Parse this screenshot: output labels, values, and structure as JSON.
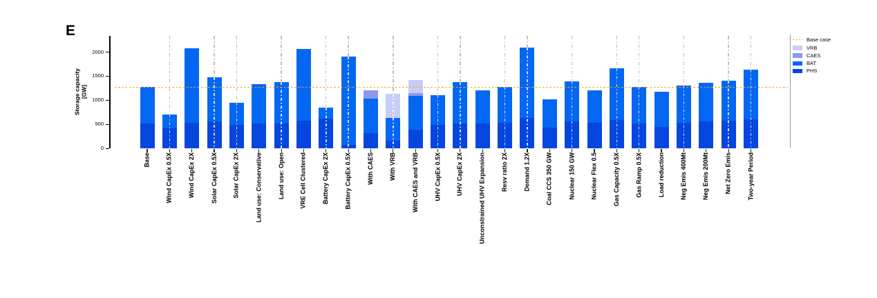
{
  "panel_label": "E",
  "chart_data": {
    "type": "bar",
    "stacked": true,
    "title": "",
    "ylabel_lines": [
      "Storage capacity",
      "[GW]"
    ],
    "ylabel": "Storage capacity [GW]",
    "xlabel": "",
    "yticks": [
      0,
      500,
      1000,
      1500,
      2000
    ],
    "ylim": [
      0,
      2320
    ],
    "grid": "vertical-dashed-on-selected-categories",
    "legend_position": "right",
    "base_case": {
      "label": "Base case",
      "value": 1270,
      "color": "#F5A300",
      "style": "dotted"
    },
    "colors": {
      "PHS": "#0546DE",
      "BAT": "#0467F2",
      "CAES": "#8C97EE",
      "VRB": "#C7CDF5"
    },
    "segment_order": [
      "PHS",
      "BAT",
      "CAES",
      "VRB"
    ],
    "legend": [
      {
        "label": "Base case",
        "swatch": "dotted-line",
        "color": "#F5A300"
      },
      {
        "label": "VRB",
        "swatch": "box",
        "color": "#C7CDF5"
      },
      {
        "label": "CAES",
        "swatch": "box",
        "color": "#8C97EE"
      },
      {
        "label": "BAT",
        "swatch": "box",
        "color": "#0467F2"
      },
      {
        "label": "PHS",
        "swatch": "box",
        "color": "#0546DE"
      }
    ],
    "categories": [
      "Base",
      "Wind CapEx 0.5X",
      "Wind CapEx 2X",
      "Solar CapEx 0.5X",
      "Solar CapEx 2X",
      "Land use: Conservative",
      "Land use: Open",
      "VRE Cell Clustered",
      "Battery CapEx 2X",
      "Battery CapEx 0.5X",
      "With CAES",
      "With VRB",
      "With CAES and VRB",
      "UHV CapEx 0.5X",
      "UHV CapEx 2X",
      "Unconstrained UHV Expansion",
      "Resv ratio 2X",
      "Demand 1.2X",
      "Coal CCS 350 GW",
      "Nuclear 150 GW",
      "Nuclear Flex 0.5",
      "Gas Capacity 0.5X",
      "Gas Ramp 0.5X",
      "Load reduction",
      "Neg Emis 400Mt",
      "Neg Emis 200Mt",
      "Net Zero Emis",
      "Two-year Period"
    ],
    "series": [
      {
        "name": "PHS",
        "values": [
          520,
          420,
          525,
          565,
          490,
          510,
          510,
          575,
          610,
          70,
          320,
          160,
          385,
          490,
          510,
          510,
          525,
          635,
          430,
          565,
          525,
          585,
          510,
          440,
          525,
          560,
          575,
          600
        ]
      },
      {
        "name": "BAT",
        "values": [
          750,
          285,
          1555,
          915,
          460,
          820,
          865,
          1495,
          240,
          1840,
          710,
          475,
          705,
          620,
          865,
          690,
          745,
          1465,
          595,
          825,
          685,
          1080,
          760,
          730,
          775,
          810,
          825,
          1035
        ]
      },
      {
        "name": "CAES",
        "values": [
          0,
          0,
          0,
          0,
          0,
          0,
          0,
          0,
          0,
          0,
          180,
          0,
          60,
          0,
          0,
          0,
          0,
          0,
          0,
          0,
          0,
          0,
          0,
          0,
          0,
          0,
          0,
          0
        ]
      },
      {
        "name": "VRB",
        "values": [
          0,
          0,
          0,
          0,
          0,
          0,
          0,
          0,
          0,
          0,
          0,
          500,
          275,
          0,
          0,
          0,
          0,
          0,
          0,
          0,
          0,
          0,
          0,
          0,
          0,
          0,
          0,
          0
        ]
      }
    ],
    "totals": [
      1270,
      705,
      2080,
      1480,
      950,
      1330,
      1375,
      2070,
      850,
      1910,
      1210,
      1135,
      1425,
      1110,
      1375,
      1200,
      1270,
      2100,
      1025,
      1390,
      1210,
      1665,
      1270,
      1170,
      1300,
      1370,
      1400,
      1635
    ],
    "gridlines": [
      false,
      true,
      false,
      true,
      true,
      false,
      true,
      false,
      true,
      true,
      false,
      true,
      false,
      true,
      true,
      false,
      true,
      true,
      false,
      true,
      false,
      true,
      true,
      false,
      true,
      false,
      true,
      true
    ]
  }
}
